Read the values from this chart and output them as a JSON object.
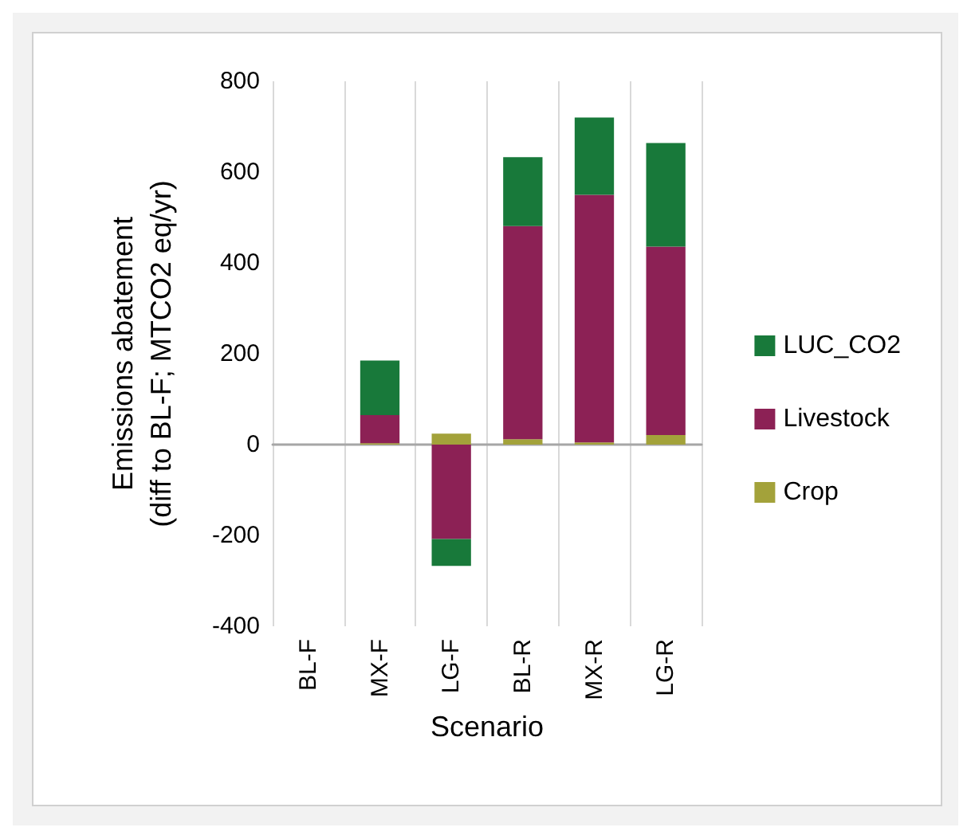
{
  "chart_data": {
    "type": "bar",
    "stacked": true,
    "xlabel": "Scenario",
    "ylabel": "Emissions abatement\n(diff to BL-F; MTCO2 eq/yr)",
    "categories": [
      "BL-F",
      "MX-F",
      "LG-F",
      "BL-R",
      "MX-R",
      "LG-R"
    ],
    "series": [
      {
        "name": "Crop",
        "color": "#a3a23a",
        "values": [
          0,
          3,
          24,
          12,
          5,
          21
        ]
      },
      {
        "name": "Livestock",
        "color": "#8c2155",
        "values": [
          0,
          62,
          -208,
          469,
          545,
          415
        ]
      },
      {
        "name": "LUC_CO2",
        "color": "#18793a",
        "values": [
          0,
          120,
          -59,
          152,
          170,
          228
        ]
      }
    ],
    "ylim": [
      -400,
      800
    ],
    "yticks": [
      -400,
      -200,
      0,
      200,
      400,
      600,
      800
    ],
    "grid": "x",
    "legend": "right"
  }
}
